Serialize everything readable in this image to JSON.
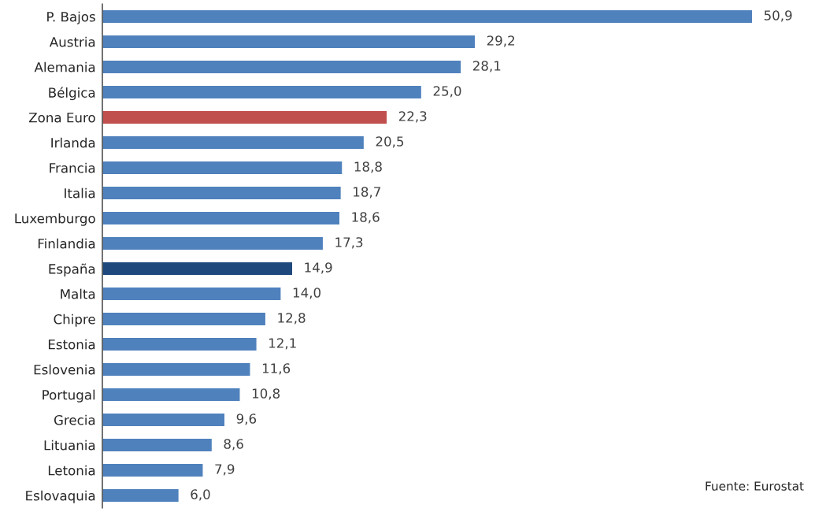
{
  "chart_data": {
    "type": "bar",
    "orientation": "horizontal",
    "categories": [
      "P. Bajos",
      "Austria",
      "Alemania",
      "Bélgica",
      "Zona Euro",
      "Irlanda",
      "Francia",
      "Italia",
      "Luxemburgo",
      "Finlandia",
      "España",
      "Malta",
      "Chipre",
      "Estonia",
      "Eslovenia",
      "Portugal",
      "Grecia",
      "Lituania",
      "Letonia",
      "Eslovaquia"
    ],
    "values": [
      50.9,
      29.2,
      28.1,
      25.0,
      22.3,
      20.5,
      18.8,
      18.7,
      18.6,
      17.3,
      14.9,
      14.0,
      12.8,
      12.1,
      11.6,
      10.8,
      9.6,
      8.6,
      7.9,
      6.0
    ],
    "colors": [
      "#4f81bd",
      "#4f81bd",
      "#4f81bd",
      "#4f81bd",
      "#c0504d",
      "#4f81bd",
      "#4f81bd",
      "#4f81bd",
      "#4f81bd",
      "#4f81bd",
      "#1f497d",
      "#4f81bd",
      "#4f81bd",
      "#4f81bd",
      "#4f81bd",
      "#4f81bd",
      "#4f81bd",
      "#4f81bd",
      "#4f81bd",
      "#4f81bd"
    ],
    "value_labels": [
      "50,9",
      "29,2",
      "28,1",
      "25,0",
      "22,3",
      "20,5",
      "18,8",
      "18,7",
      "18,6",
      "17,3",
      "14,9",
      "14,0",
      "12,8",
      "12,1",
      "11,6",
      "10,8",
      "9,6",
      "8,6",
      "7,9",
      "6,0"
    ],
    "annotations": [
      "Fuente: Eurostat"
    ],
    "grid": false,
    "legend": false
  }
}
